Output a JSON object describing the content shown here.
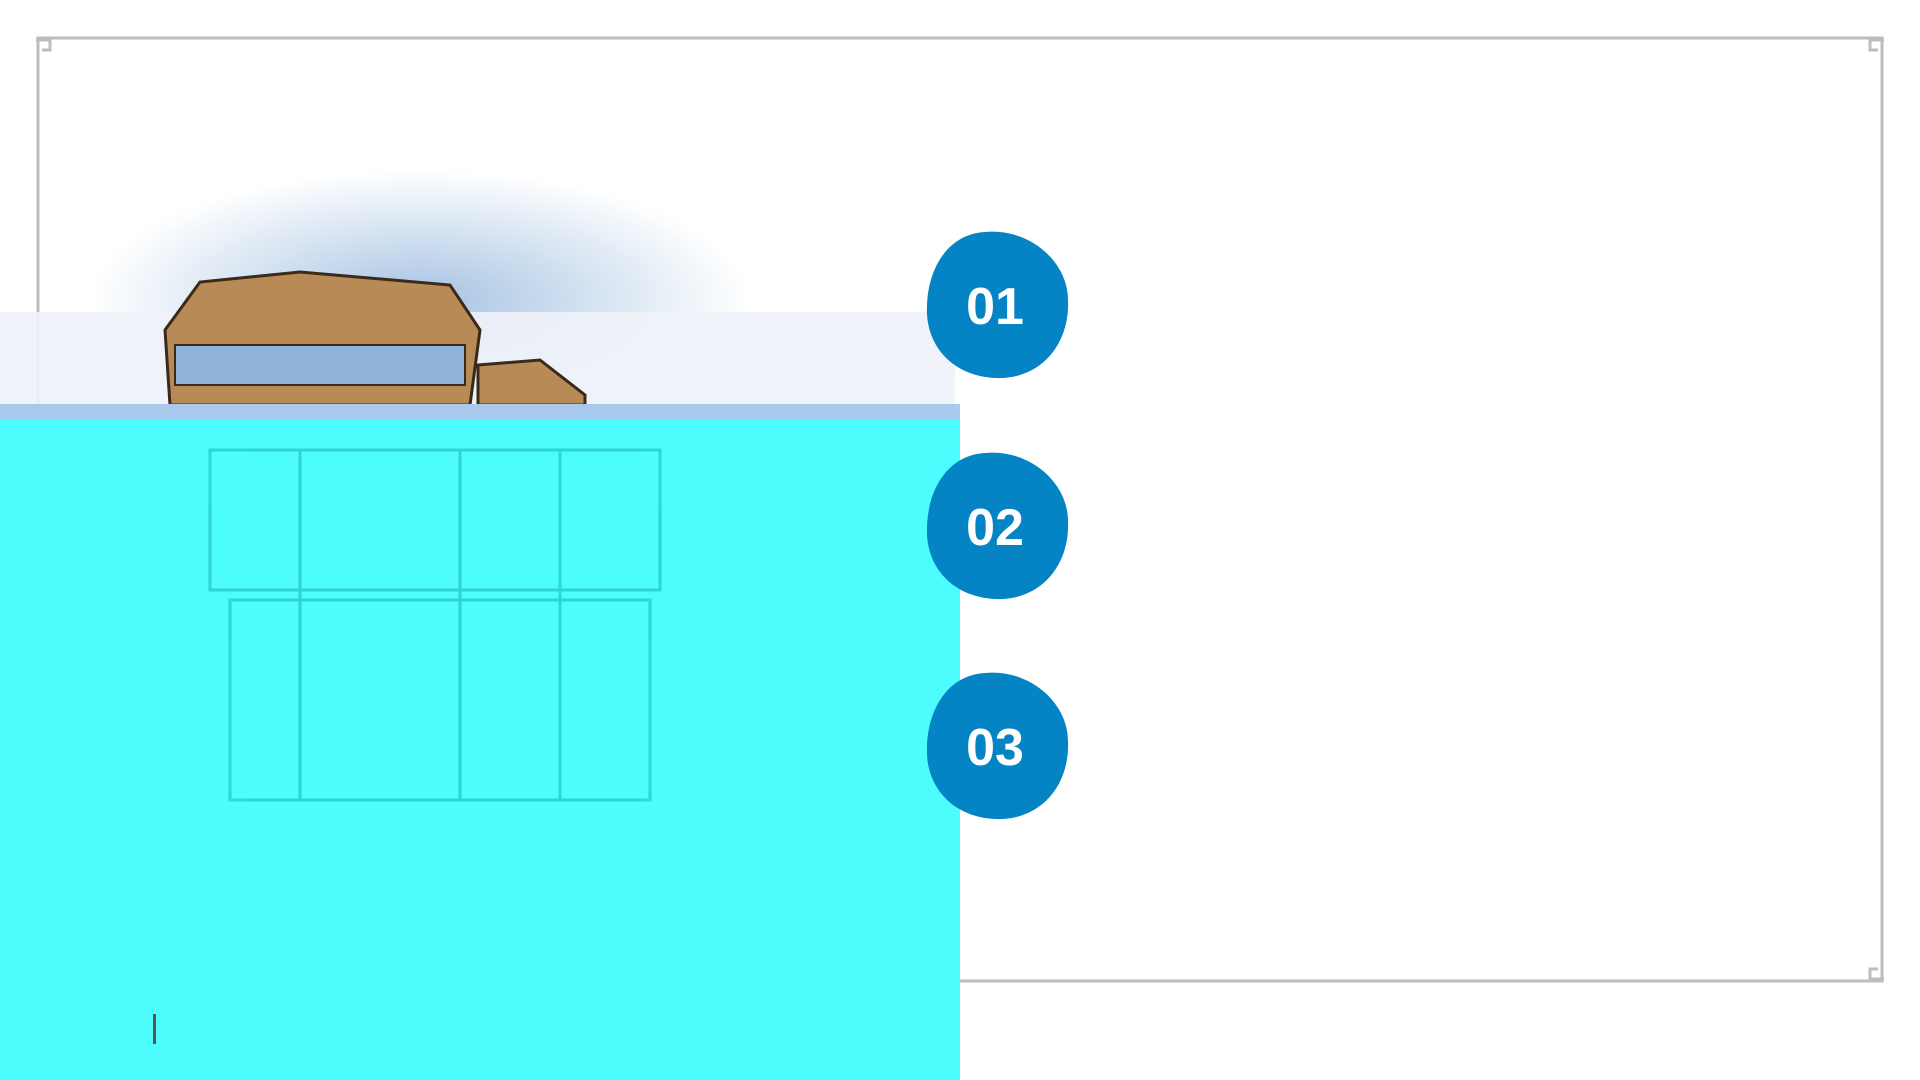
{
  "items": [
    {
      "number": "01"
    },
    {
      "number": "02"
    },
    {
      "number": "03"
    }
  ]
}
